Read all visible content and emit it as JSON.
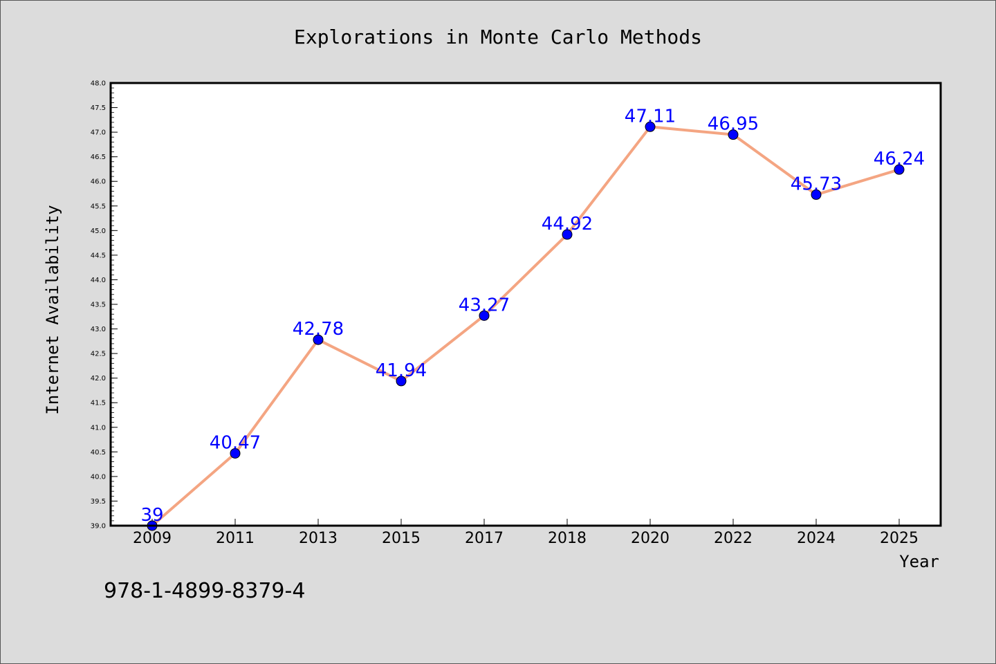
{
  "chart_data": {
    "type": "line",
    "title": "Explorations in Monte Carlo Methods",
    "xlabel": "Year",
    "ylabel": "Internet Availability",
    "categories": [
      "2009",
      "2011",
      "2013",
      "2015",
      "2017",
      "2018",
      "2020",
      "2022",
      "2024",
      "2025"
    ],
    "series": [
      {
        "values": [
          39.0,
          40.47,
          42.78,
          41.94,
          43.27,
          44.92,
          47.11,
          46.95,
          45.73,
          46.24
        ],
        "data_labels": [
          "39",
          "40.47",
          "42.78",
          "41.94",
          "43.27",
          "44.92",
          "47.11",
          "46.95",
          "45.73",
          "46.24"
        ]
      }
    ],
    "ylim": [
      39.0,
      48.0
    ],
    "ytick_labels": [
      "39.0",
      "39.5",
      "40.0",
      "40.5",
      "41.0",
      "41.5",
      "42.0",
      "42.5",
      "43.0",
      "43.5",
      "44.0",
      "44.5",
      "45.0",
      "45.5",
      "46.0",
      "46.5",
      "47.0",
      "47.5",
      "48.0"
    ],
    "grid": false,
    "colors": {
      "line": "#f4a582",
      "marker": "#0000ff",
      "data_label": "#0000ff",
      "background": "#dcdcdc",
      "plot_background": "#ffffff"
    }
  },
  "footer_text": "978-1-4899-8379-4"
}
